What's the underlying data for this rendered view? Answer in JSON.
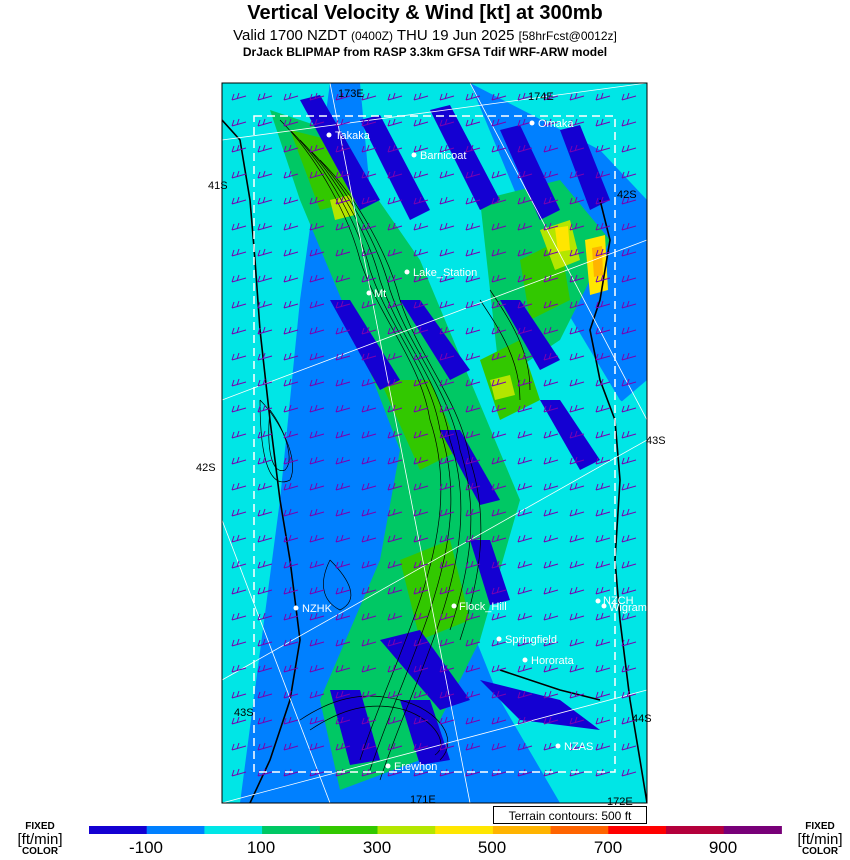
{
  "header": {
    "title": "Vertical Velocity & Wind [kt] at 300mb",
    "valid_prefix": "Valid 1700 NZDT",
    "valid_utc": "(0400Z)",
    "valid_date": "THU 19 Jun 2025",
    "forecast": "[58hrFcst@0012z]",
    "model": "DrJack BLIPMAP from RASP 3.3km GFSA Tdif WRF-ARW model"
  },
  "map": {
    "graticule_labels": [
      "173E",
      "174E",
      "41S",
      "42S",
      "42S",
      "43S",
      "43S",
      "44S",
      "171E",
      "172E"
    ],
    "towns": [
      "Takaka",
      "Barnicoat",
      "Omaka",
      "Lake_Station",
      "Mt",
      "NZHK",
      "Flock_Hill",
      "NZCH",
      "Wigram",
      "Springfield",
      "Hororata",
      "NZAS",
      "Erewhon"
    ],
    "terrain_note": "Terrain contours: 500 ft"
  },
  "legend": {
    "left_label": [
      "FIXED",
      "[ft/min]",
      "COLOR"
    ],
    "right_label": [
      "FIXED",
      "[ft/min]",
      "COLOR"
    ],
    "tick_labels": [
      "-100",
      "100",
      "300",
      "500",
      "700",
      "900"
    ],
    "bins": [
      -300,
      -200,
      -100,
      0,
      100,
      200,
      300,
      400,
      500,
      600,
      700,
      800,
      900
    ],
    "colors": [
      "#1400d2",
      "#0080ff",
      "#00e6e6",
      "#00c864",
      "#32c800",
      "#b4e600",
      "#ffe600",
      "#ffb400",
      "#ff6400",
      "#ff0000",
      "#b4003c",
      "#780078"
    ]
  }
}
